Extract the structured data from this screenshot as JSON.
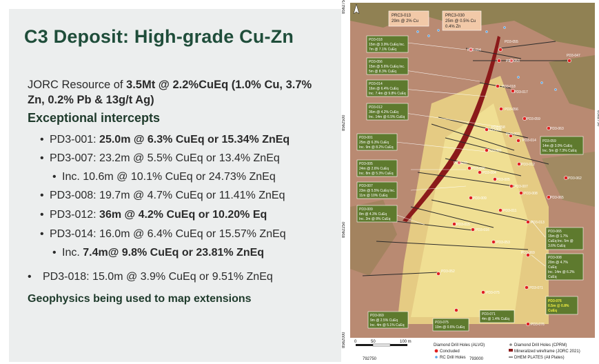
{
  "title": "C3 Deposit: High-grade Cu-Zn",
  "resource": {
    "prefix": "JORC Resource of ",
    "bold": "3.5Mt @ 2.2%CuEq (1.0% Cu, 3.7% Zn, 0.2% Pb & 13g/t Ag)"
  },
  "intercepts_heading": "Exceptional intercepts",
  "intercepts": [
    {
      "hole": "PD3-001: ",
      "value": "25.0m @ 6.3% CuEq or 15.34% ZnEq",
      "bold": true
    },
    {
      "hole": "PD3-007: ",
      "value": "23.2m @ 5.5% CuEq or 13.4% ZnEq",
      "bold": false
    },
    {
      "hole": "Inc. ",
      "value": "10.6m @ 10.1% CuEq or 24.73% ZnEq",
      "bold": false
    },
    {
      "hole": "PD3-008: ",
      "value": "19.7m @ 4.7% CuEq or 11.41% ZnEq",
      "bold": false
    },
    {
      "hole": "PD3-012: ",
      "value": "36m @ 4.2% CuEq or 10.20% Eq",
      "bold": true
    },
    {
      "hole": "PD3-014: ",
      "value": "16.0m @ 6.4% CuEq or 15.57% ZnEq",
      "bold": false
    },
    {
      "hole": "Inc. ",
      "value": "7.4m@ 9.8% CuEq or 23.81% ZnEq",
      "bold": true
    },
    {
      "hole": "PD3-018: ",
      "value": "15.0m @ 3.9% CuEq or 9.51% ZnEq",
      "bold": false
    }
  ],
  "geophysics": "Geophysics being used to map extensions",
  "map": {
    "colors": {
      "ground": "#b98a72",
      "zone": "#f4e08a",
      "wireframe": "#8b1a1a",
      "callout": "#5e7a2e",
      "callout_text": "#ffffff",
      "highlight": "#f3f042"
    },
    "callouts": [
      {
        "id": "PRC3-013",
        "lines": [
          "PRC3-013",
          "29m @ 2% Cu"
        ]
      },
      {
        "id": "PRC3-030",
        "lines": [
          "PRC3-030",
          "25m @ 0.5% Cu",
          "0.4% Zn"
        ]
      },
      {
        "id": "PD3-018",
        "lines": [
          "PD3-018",
          "15m @ 3.9% CuEq Inc.",
          "7m @ 7.1% CuEq"
        ]
      },
      {
        "id": "PD3-056",
        "lines": [
          "PD3-056",
          "15m @ 5.6% CuEq Inc.",
          "5m @ 8.3% CuEq"
        ]
      },
      {
        "id": "PD3-014",
        "lines": [
          "PD3-014",
          "16m @ 6.4% CuEq",
          "Inc. 7.4m @ 9.8% CuEq"
        ]
      },
      {
        "id": "PD3-012",
        "lines": [
          "PD3-012",
          "36m @ 4.2% CuEq",
          "Inc. 14m @ 6.5% CuEq"
        ]
      },
      {
        "id": "PD3-001",
        "lines": [
          "PD3-001",
          "25m @ 6.3% CuEq",
          "Inc. 9m @ 8.2% CuEq"
        ]
      },
      {
        "id": "PD3-005",
        "lines": [
          "PD3-005",
          "24m @ 2.6% CuEq",
          "Inc. 8m @ 5.3% CuEq"
        ]
      },
      {
        "id": "PD3-007",
        "lines": [
          "PD3-007",
          "23m @ 5.5% CuEq Inc.",
          "11m @ 10% CuEq"
        ]
      },
      {
        "id": "PD3-009",
        "lines": [
          "PD3-009",
          "8m @ 4.3% CuEq",
          "Inc. 2m @ 8% CuEq"
        ]
      },
      {
        "id": "PD3-059",
        "lines": [
          "PD3-059",
          "14m @ 3.0% CuEq",
          "Inc. 5m @ 7.3% CuEq"
        ]
      },
      {
        "id": "PD3-065",
        "lines": [
          "PD3-065",
          "15m @ 1.7%",
          "CuEq Inc. 5m @",
          "3.6% CuEq"
        ]
      },
      {
        "id": "PD3-008",
        "lines": [
          "PD3-008",
          "20m @ 4.7%",
          "CuEq",
          "Inc. 14m @ 6.2%",
          "CuEq"
        ]
      },
      {
        "id": "PD3-076",
        "lines": [
          "PD3-076",
          "0.5m @ 0.8%",
          "CuEq"
        ]
      },
      {
        "id": "PD3-069",
        "lines": [
          "PD3-069",
          "9m @ 2.5% CuEq",
          "Inc. 4m @ 5.1% CuEq"
        ]
      },
      {
        "id": "PD3-075",
        "lines": [
          "PD3-075",
          "10m @ 0.6% CuEq"
        ]
      },
      {
        "id": "PD3-071",
        "lines": [
          "PD3-071",
          "4m @ 1.4% CuEq"
        ]
      }
    ],
    "hole_labels": [
      "PD3-054",
      "PD3-055",
      "PD3-053",
      "PD3-057",
      "PD3-018",
      "PD3-017",
      "PD3-056",
      "PD3-059",
      "PD3-063",
      "PD3-002",
      "PD3-003",
      "PD3-014",
      "PD3-001",
      "PD3-010",
      "PD3-006",
      "PD3-012",
      "PD3-004",
      "PD3-005",
      "PD3-007",
      "PD3-008",
      "PD3-062",
      "PD3-009",
      "PD3-065",
      "PD3-011",
      "PD3-013",
      "PD3-015",
      "PD3-016",
      "PD3-053",
      "PD3-069",
      "PD3-052",
      "PD3-071",
      "PD3-075",
      "PD3-076",
      "PD3-058",
      "PD3-047"
    ],
    "legend": {
      "title": "Diamond Drill Holes (ALVO)",
      "concluded": "Concluded",
      "rc": "RC Drill Holes",
      "cprm": "Diamond Drill Holes (CPRM)",
      "wireframe": "Mineralized wireframe (JORC 2021)",
      "plates": "DHEM PLATES (All Plates)"
    },
    "scale": {
      "zero": "0",
      "mid": "50",
      "end": "100 m"
    },
    "coords": {
      "x1": "792750",
      "x2": "793000",
      "y1": "8562750",
      "y2": "8562500",
      "y3": "8562250",
      "y4": "8562000",
      "y5": "8562750"
    }
  }
}
